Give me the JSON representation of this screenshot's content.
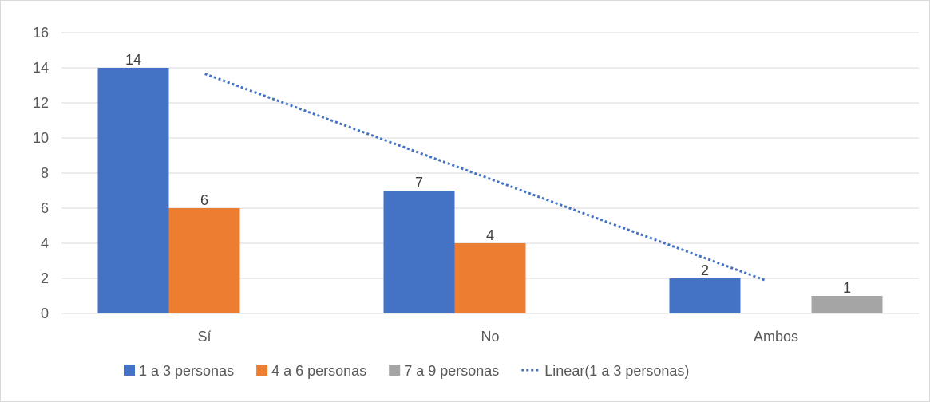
{
  "chart_data": {
    "type": "bar",
    "title": "",
    "xlabel": "",
    "ylabel": "",
    "categories": [
      "Sí",
      "No",
      "Ambos"
    ],
    "series": [
      {
        "name": "1 a 3 personas",
        "color": "#4472c4",
        "values": [
          14,
          7,
          2
        ]
      },
      {
        "name": "4 a 6 personas",
        "color": "#ed7d31",
        "values": [
          6,
          4,
          null
        ]
      },
      {
        "name": "7 a 9 personas",
        "color": "#a5a5a5",
        "values": [
          null,
          null,
          1
        ]
      }
    ],
    "trendline": {
      "name": "Linear(1 a 3 personas)",
      "type": "linear",
      "of_series": "1 a 3 personas",
      "color": "#4472c4",
      "style": "dotted"
    },
    "ylim": [
      0,
      16
    ],
    "yticks": [
      0,
      2,
      4,
      6,
      8,
      10,
      12,
      14,
      16
    ],
    "grid": true,
    "legend_position": "bottom"
  }
}
